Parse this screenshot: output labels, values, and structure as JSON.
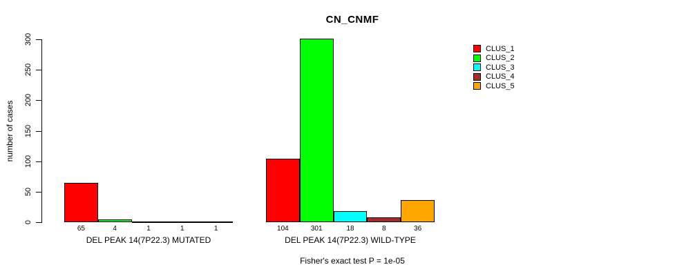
{
  "title": "CN_CNMF",
  "ylabel": "number of cases",
  "caption": "Fisher's exact test P = 1e-05",
  "legend": {
    "entries": [
      {
        "label": "CLUS_1",
        "color": "#ff0000"
      },
      {
        "label": "CLUS_2",
        "color": "#00ff00"
      },
      {
        "label": "CLUS_3",
        "color": "#00ffff"
      },
      {
        "label": "CLUS_4",
        "color": "#a52a2a"
      },
      {
        "label": "CLUS_5",
        "color": "#ffa500"
      }
    ]
  },
  "chart_data": {
    "type": "bar",
    "title": "CN_CNMF",
    "xlabel": "",
    "ylabel": "number of cases",
    "ylim": [
      0,
      300
    ],
    "yticks": [
      0,
      50,
      100,
      150,
      200,
      250,
      300
    ],
    "grid": false,
    "legend_position": "right",
    "series_names": [
      "CLUS_1",
      "CLUS_2",
      "CLUS_3",
      "CLUS_4",
      "CLUS_5"
    ],
    "series_colors": [
      "#ff0000",
      "#00ff00",
      "#00ffff",
      "#a52a2a",
      "#ffa500"
    ],
    "groups": [
      {
        "label": "DEL PEAK 14(7P22.3) MUTATED",
        "values": [
          65,
          4,
          1,
          1,
          1
        ]
      },
      {
        "label": "DEL PEAK 14(7P22.3) WILD-TYPE",
        "values": [
          104,
          301,
          18,
          8,
          36
        ]
      }
    ],
    "value_labels_shown": true
  }
}
